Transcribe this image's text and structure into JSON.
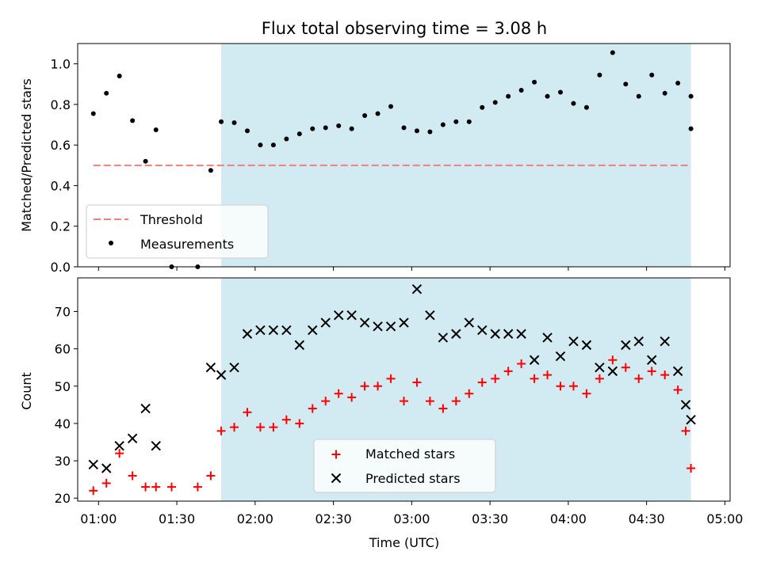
{
  "chart_data": [
    {
      "type": "scatter",
      "title": "Flux total observing time = 3.08 h",
      "ylabel": "Matched/Predicted stars",
      "ylim": [
        0,
        1.1
      ],
      "yticks": [
        "0.0",
        "0.2",
        "0.4",
        "0.6",
        "0.8",
        "1.0"
      ],
      "observing_window": [
        "01:47",
        "04:47"
      ],
      "window_color": "#add8e6",
      "threshold": {
        "name": "Threshold",
        "value": 0.5,
        "from": "00:58",
        "to": "04:47",
        "color": "#f08080"
      },
      "series": [
        {
          "name": "Measurements",
          "color": "#000000",
          "points": [
            [
              "00:58",
              0.755
            ],
            [
              "01:03",
              0.855
            ],
            [
              "01:08",
              0.94
            ],
            [
              "01:13",
              0.72
            ],
            [
              "01:18",
              0.52
            ],
            [
              "01:22",
              0.675
            ],
            [
              "01:28",
              0.0
            ],
            [
              "01:38",
              0.0
            ],
            [
              "01:43",
              0.475
            ],
            [
              "01:47",
              0.715
            ],
            [
              "01:52",
              0.71
            ],
            [
              "01:57",
              0.67
            ],
            [
              "02:02",
              0.6
            ],
            [
              "02:07",
              0.6
            ],
            [
              "02:12",
              0.63
            ],
            [
              "02:17",
              0.655
            ],
            [
              "02:22",
              0.68
            ],
            [
              "02:27",
              0.685
            ],
            [
              "02:32",
              0.695
            ],
            [
              "02:37",
              0.68
            ],
            [
              "02:42",
              0.745
            ],
            [
              "02:47",
              0.755
            ],
            [
              "02:52",
              0.79
            ],
            [
              "02:57",
              0.685
            ],
            [
              "03:02",
              0.67
            ],
            [
              "03:07",
              0.665
            ],
            [
              "03:12",
              0.7
            ],
            [
              "03:17",
              0.715
            ],
            [
              "03:22",
              0.715
            ],
            [
              "03:27",
              0.785
            ],
            [
              "03:32",
              0.81
            ],
            [
              "03:37",
              0.84
            ],
            [
              "03:42",
              0.87
            ],
            [
              "03:47",
              0.91
            ],
            [
              "03:52",
              0.84
            ],
            [
              "03:57",
              0.86
            ],
            [
              "04:02",
              0.805
            ],
            [
              "04:07",
              0.785
            ],
            [
              "04:12",
              0.945
            ],
            [
              "04:17",
              1.055
            ],
            [
              "04:22",
              0.9
            ],
            [
              "04:27",
              0.84
            ],
            [
              "04:32",
              0.945
            ],
            [
              "04:37",
              0.855
            ],
            [
              "04:42",
              0.905
            ],
            [
              "04:47",
              0.84
            ],
            [
              "04:47",
              0.68
            ]
          ]
        }
      ],
      "legend": [
        "Threshold",
        "Measurements"
      ],
      "legend_position": "lower-left"
    },
    {
      "type": "scatter",
      "xlabel": "Time (UTC)",
      "ylabel": "Count",
      "ylim": [
        19.2,
        79
      ],
      "yticks": [
        "20",
        "30",
        "40",
        "50",
        "60",
        "70"
      ],
      "xticks": [
        "01:00",
        "01:30",
        "02:00",
        "02:30",
        "03:00",
        "03:30",
        "04:00",
        "04:30",
        "05:00"
      ],
      "xlim": [
        "00:52",
        "05:02"
      ],
      "observing_window": [
        "01:47",
        "04:47"
      ],
      "series": [
        {
          "name": "Matched stars",
          "color": "#ff0000",
          "marker": "plus",
          "points": [
            [
              "00:58",
              22
            ],
            [
              "01:03",
              24
            ],
            [
              "01:08",
              32
            ],
            [
              "01:13",
              26
            ],
            [
              "01:18",
              23
            ],
            [
              "01:22",
              23
            ],
            [
              "01:28",
              23
            ],
            [
              "01:38",
              23
            ],
            [
              "01:43",
              26
            ],
            [
              "01:47",
              38
            ],
            [
              "01:52",
              39
            ],
            [
              "01:57",
              43
            ],
            [
              "02:02",
              39
            ],
            [
              "02:07",
              39
            ],
            [
              "02:12",
              41
            ],
            [
              "02:17",
              40
            ],
            [
              "02:22",
              44
            ],
            [
              "02:27",
              46
            ],
            [
              "02:32",
              48
            ],
            [
              "02:37",
              47
            ],
            [
              "02:42",
              50
            ],
            [
              "02:47",
              50
            ],
            [
              "02:52",
              52
            ],
            [
              "02:57",
              46
            ],
            [
              "03:02",
              51
            ],
            [
              "03:07",
              46
            ],
            [
              "03:12",
              44
            ],
            [
              "03:17",
              46
            ],
            [
              "03:22",
              48
            ],
            [
              "03:27",
              51
            ],
            [
              "03:32",
              52
            ],
            [
              "03:37",
              54
            ],
            [
              "03:42",
              56
            ],
            [
              "03:47",
              52
            ],
            [
              "03:52",
              53
            ],
            [
              "03:57",
              50
            ],
            [
              "04:02",
              50
            ],
            [
              "04:07",
              48
            ],
            [
              "04:12",
              52
            ],
            [
              "04:17",
              57
            ],
            [
              "04:22",
              55
            ],
            [
              "04:27",
              52
            ],
            [
              "04:32",
              54
            ],
            [
              "04:37",
              53
            ],
            [
              "04:42",
              49
            ],
            [
              "04:45",
              38
            ],
            [
              "04:47",
              28
            ]
          ]
        },
        {
          "name": "Predicted stars",
          "color": "#000000",
          "marker": "x",
          "points": [
            [
              "00:58",
              29
            ],
            [
              "01:03",
              28
            ],
            [
              "01:08",
              34
            ],
            [
              "01:13",
              36
            ],
            [
              "01:18",
              44
            ],
            [
              "01:22",
              34
            ],
            [
              "01:43",
              55
            ],
            [
              "01:47",
              53
            ],
            [
              "01:52",
              55
            ],
            [
              "01:57",
              64
            ],
            [
              "02:02",
              65
            ],
            [
              "02:07",
              65
            ],
            [
              "02:12",
              65
            ],
            [
              "02:17",
              61
            ],
            [
              "02:22",
              65
            ],
            [
              "02:27",
              67
            ],
            [
              "02:32",
              69
            ],
            [
              "02:37",
              69
            ],
            [
              "02:42",
              67
            ],
            [
              "02:47",
              66
            ],
            [
              "02:52",
              66
            ],
            [
              "02:57",
              67
            ],
            [
              "03:02",
              76
            ],
            [
              "03:07",
              69
            ],
            [
              "03:12",
              63
            ],
            [
              "03:17",
              64
            ],
            [
              "03:22",
              67
            ],
            [
              "03:27",
              65
            ],
            [
              "03:32",
              64
            ],
            [
              "03:37",
              64
            ],
            [
              "03:42",
              64
            ],
            [
              "03:47",
              57
            ],
            [
              "03:52",
              63
            ],
            [
              "03:57",
              58
            ],
            [
              "04:02",
              62
            ],
            [
              "04:07",
              61
            ],
            [
              "04:12",
              55
            ],
            [
              "04:17",
              54
            ],
            [
              "04:22",
              61
            ],
            [
              "04:27",
              62
            ],
            [
              "04:32",
              57
            ],
            [
              "04:37",
              62
            ],
            [
              "04:42",
              54
            ],
            [
              "04:45",
              45
            ],
            [
              "04:47",
              41
            ]
          ]
        }
      ],
      "legend": [
        "Matched stars",
        "Predicted stars"
      ],
      "legend_position": "lower-center"
    }
  ]
}
